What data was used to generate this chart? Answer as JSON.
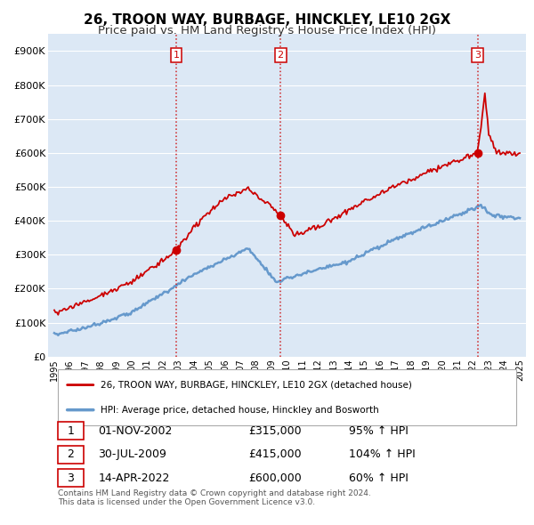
{
  "title": "26, TROON WAY, BURBAGE, HINCKLEY, LE10 2GX",
  "subtitle": "Price paid vs. HM Land Registry's House Price Index (HPI)",
  "ylim": [
    0,
    950000
  ],
  "yticks": [
    0,
    100000,
    200000,
    300000,
    400000,
    500000,
    600000,
    700000,
    800000,
    900000
  ],
  "ytick_labels": [
    "£0",
    "£100K",
    "£200K",
    "£300K",
    "£400K",
    "£500K",
    "£600K",
    "£700K",
    "£800K",
    "£900K"
  ],
  "hpi_color": "#6699cc",
  "price_color": "#cc0000",
  "vline_color": "#cc0000",
  "background_color": "#ffffff",
  "plot_bg_color": "#dce8f5",
  "grid_color": "#ffffff",
  "sale_points": [
    {
      "date_num": 2002.85,
      "price": 315000,
      "label": "1"
    },
    {
      "date_num": 2009.58,
      "price": 415000,
      "label": "2"
    },
    {
      "date_num": 2022.28,
      "price": 600000,
      "label": "3"
    }
  ],
  "sale_table": [
    {
      "num": "1",
      "date": "01-NOV-2002",
      "price": "£315,000",
      "pct": "95% ↑ HPI"
    },
    {
      "num": "2",
      "date": "30-JUL-2009",
      "price": "£415,000",
      "pct": "104% ↑ HPI"
    },
    {
      "num": "3",
      "date": "14-APR-2022",
      "price": "£600,000",
      "pct": "60% ↑ HPI"
    }
  ],
  "legend_entries": [
    {
      "label": "26, TROON WAY, BURBAGE, HINCKLEY, LE10 2GX (detached house)",
      "color": "#cc0000",
      "lw": 1.8
    },
    {
      "label": "HPI: Average price, detached house, Hinckley and Bosworth",
      "color": "#6699cc",
      "lw": 2.2
    }
  ],
  "footnote": "Contains HM Land Registry data © Crown copyright and database right 2024.\nThis data is licensed under the Open Government Licence v3.0.",
  "title_fontsize": 11,
  "subtitle_fontsize": 9.5
}
